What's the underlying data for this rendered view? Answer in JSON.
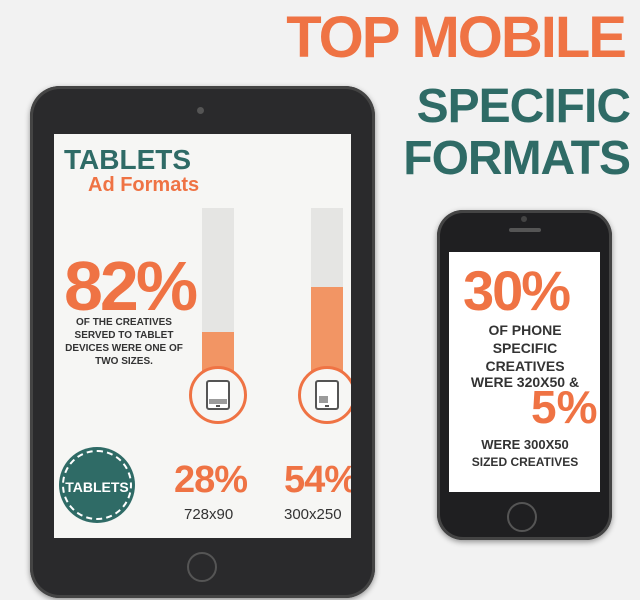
{
  "title": {
    "line1": "TOP MOBILE",
    "line2": "SPECIFIC",
    "line3": "FORMATS"
  },
  "tablet": {
    "heading": "TABLETS",
    "subheading": "Ad Formats",
    "stat": "82%",
    "description": "OF THE CREATIVES SERVED TO TABLET DEVICES WERE ONE OF TWO SIZES.",
    "badge": "TABLETS",
    "formats": [
      {
        "percent": "28%",
        "size": "728x90",
        "value": 28
      },
      {
        "percent": "54%",
        "size": "300x250",
        "value": 54
      }
    ]
  },
  "phone": {
    "stat1": "30%",
    "line1": "OF PHONE",
    "line2": "SPECIFIC",
    "line3": "CREATIVES",
    "line3b": "WERE 320x50 &",
    "stat2": "5%",
    "line4": "WERE 300x50",
    "line5": "SIZED CREATIVES"
  },
  "colors": {
    "orange": "#ef7344",
    "teal": "#2f6b66"
  }
}
